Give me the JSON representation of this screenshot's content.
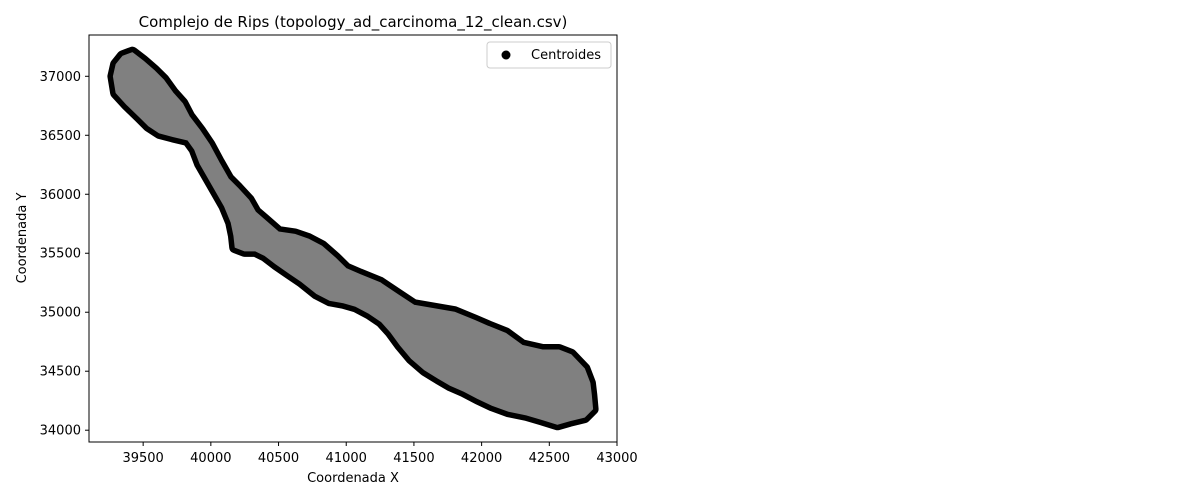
{
  "chart_data": {
    "type": "scatter",
    "title": "Complejo de Rips (topology_ad_carcinoma_12_clean.csv)",
    "xlabel": "Coordenada X",
    "ylabel": "Coordenada Y",
    "xlim": [
      39100,
      43000
    ],
    "ylim": [
      33900,
      37350
    ],
    "xticks": [
      39500,
      40000,
      40500,
      41000,
      41500,
      42000,
      42500,
      43000
    ],
    "yticks": [
      34000,
      34500,
      35000,
      35500,
      36000,
      36500,
      37000
    ],
    "grid": false,
    "legend": {
      "position": "top-right",
      "entries": [
        "Centroides"
      ]
    },
    "series": [
      {
        "name": "Centroides",
        "kind": "point-cloud-with-rips-complex",
        "point_color": "#000000",
        "complex_fill_color": "#808080",
        "boundary": [
          [
            39280,
            37000
          ],
          [
            39300,
            37100
          ],
          [
            39350,
            37170
          ],
          [
            39420,
            37200
          ],
          [
            39500,
            37130
          ],
          [
            39580,
            37050
          ],
          [
            39650,
            36970
          ],
          [
            39720,
            36860
          ],
          [
            39790,
            36770
          ],
          [
            39840,
            36660
          ],
          [
            39920,
            36540
          ],
          [
            39990,
            36420
          ],
          [
            40060,
            36270
          ],
          [
            40130,
            36130
          ],
          [
            40200,
            36050
          ],
          [
            40280,
            35950
          ],
          [
            40330,
            35850
          ],
          [
            40400,
            35780
          ],
          [
            40500,
            35680
          ],
          [
            40620,
            35660
          ],
          [
            40720,
            35620
          ],
          [
            40820,
            35560
          ],
          [
            40920,
            35460
          ],
          [
            41000,
            35370
          ],
          [
            41100,
            35320
          ],
          [
            41250,
            35250
          ],
          [
            41380,
            35150
          ],
          [
            41500,
            35060
          ],
          [
            41650,
            35030
          ],
          [
            41800,
            35000
          ],
          [
            41950,
            34930
          ],
          [
            42050,
            34880
          ],
          [
            42180,
            34820
          ],
          [
            42300,
            34720
          ],
          [
            42450,
            34680
          ],
          [
            42570,
            34680
          ],
          [
            42660,
            34640
          ],
          [
            42760,
            34520
          ],
          [
            42800,
            34400
          ],
          [
            42810,
            34300
          ],
          [
            42820,
            34180
          ],
          [
            42760,
            34110
          ],
          [
            42650,
            34080
          ],
          [
            42560,
            34050
          ],
          [
            42450,
            34090
          ],
          [
            42330,
            34130
          ],
          [
            42200,
            34160
          ],
          [
            42080,
            34210
          ],
          [
            41970,
            34270
          ],
          [
            41870,
            34330
          ],
          [
            41770,
            34380
          ],
          [
            41680,
            34440
          ],
          [
            41580,
            34510
          ],
          [
            41480,
            34610
          ],
          [
            41400,
            34720
          ],
          [
            41330,
            34830
          ],
          [
            41260,
            34920
          ],
          [
            41170,
            34990
          ],
          [
            41070,
            35050
          ],
          [
            40980,
            35080
          ],
          [
            40880,
            35100
          ],
          [
            40780,
            35160
          ],
          [
            40670,
            35260
          ],
          [
            40580,
            35330
          ],
          [
            40480,
            35410
          ],
          [
            40400,
            35480
          ],
          [
            40330,
            35520
          ],
          [
            40250,
            35520
          ],
          [
            40180,
            35550
          ],
          [
            40170,
            35650
          ],
          [
            40150,
            35760
          ],
          [
            40100,
            35900
          ],
          [
            40050,
            36000
          ],
          [
            39990,
            36120
          ],
          [
            39920,
            36260
          ],
          [
            39880,
            36380
          ],
          [
            39830,
            36460
          ],
          [
            39720,
            36490
          ],
          [
            39620,
            36520
          ],
          [
            39540,
            36580
          ],
          [
            39470,
            36660
          ],
          [
            39380,
            36760
          ],
          [
            39300,
            36860
          ]
        ]
      }
    ]
  }
}
